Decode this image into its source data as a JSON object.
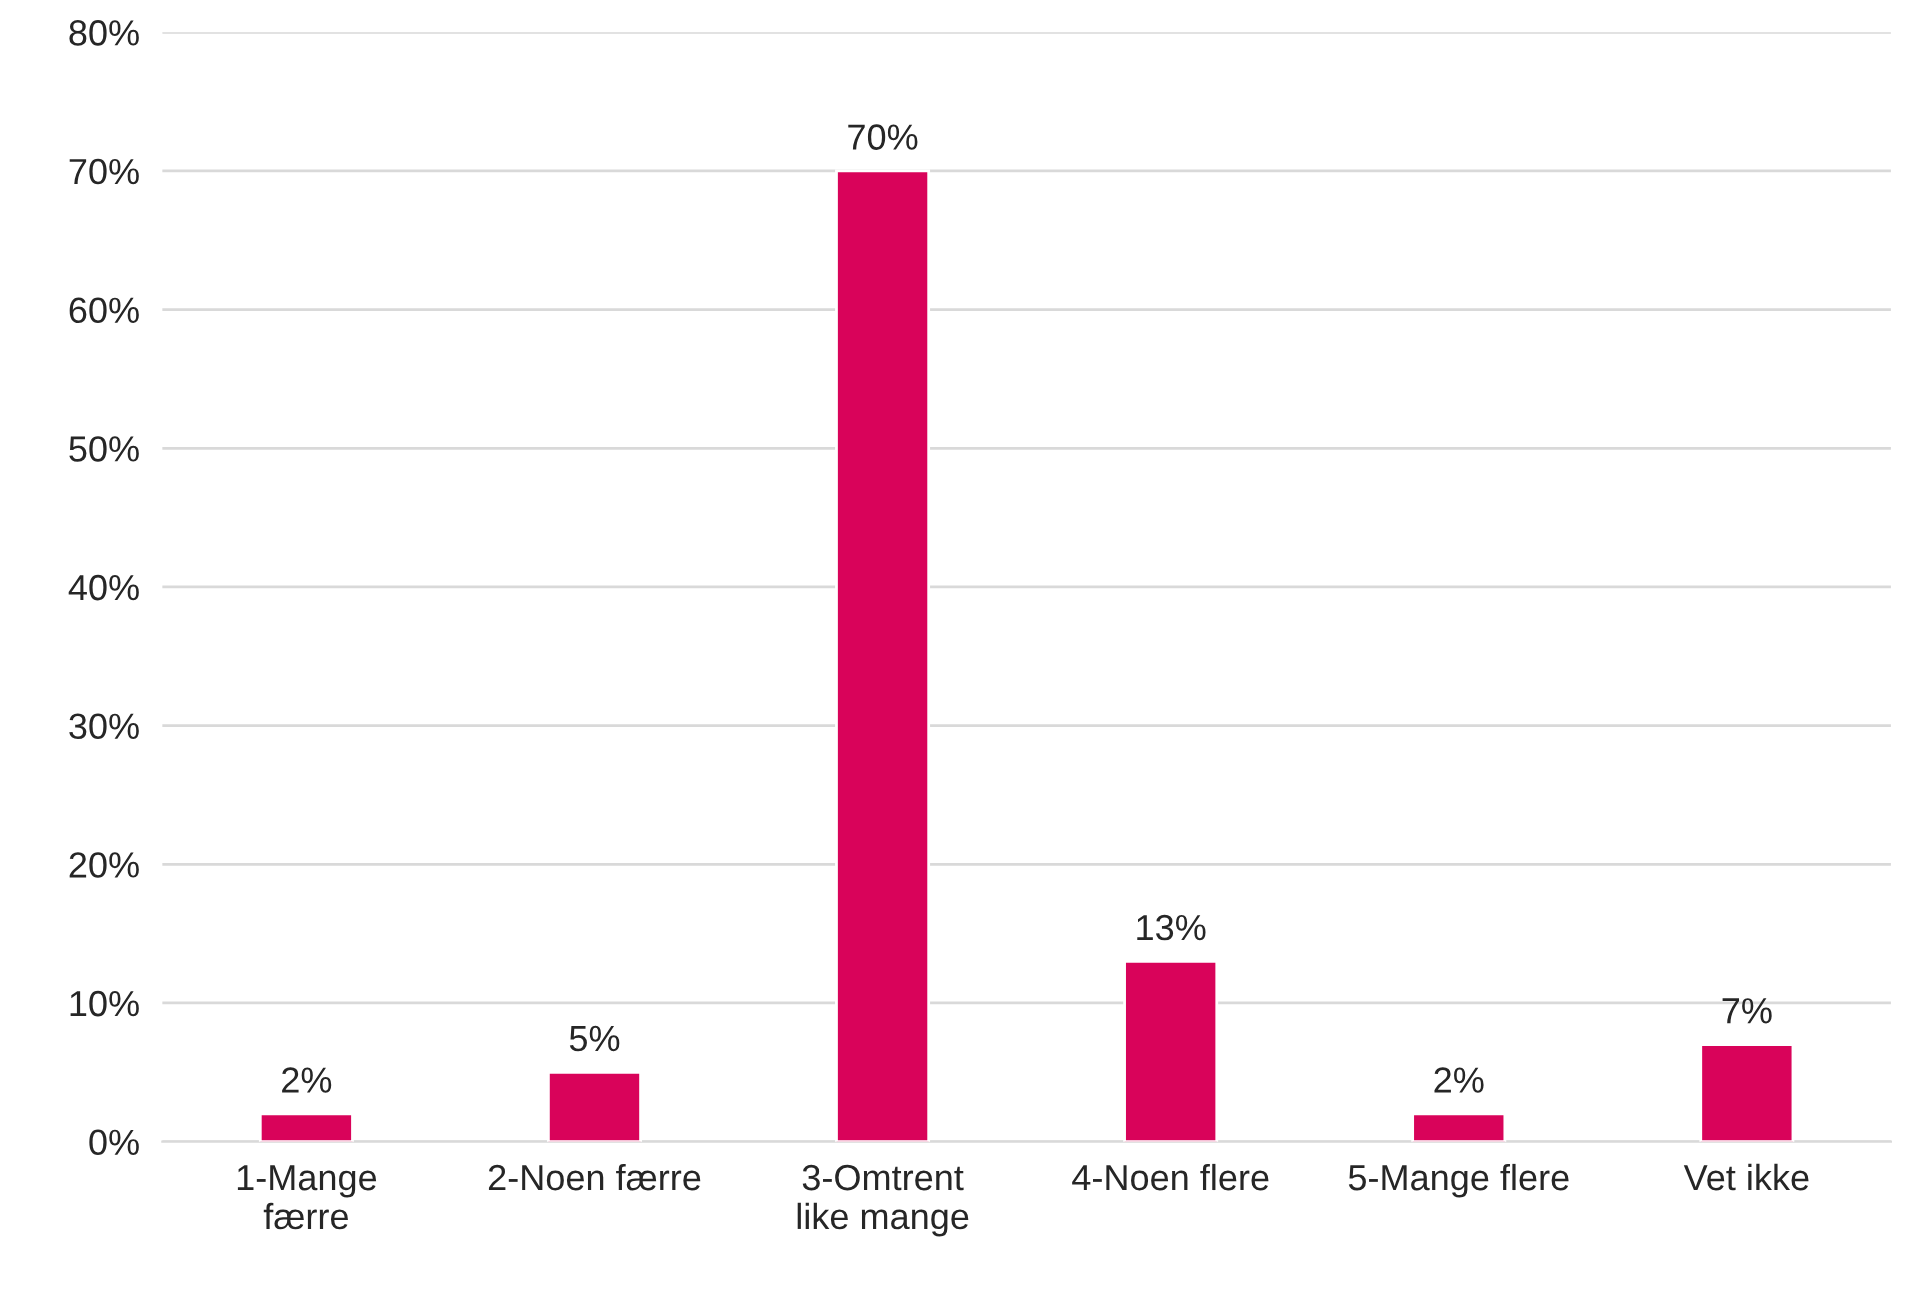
{
  "chart_data": {
    "type": "bar",
    "categories": [
      "1-Mange\nfærre",
      "2-Noen færre",
      "3-Omtrent\nlike mange",
      "4-Noen flere",
      "5-Mange flere",
      "Vet ikke"
    ],
    "values": [
      2,
      5,
      70,
      13,
      2,
      7
    ],
    "value_labels": [
      "2%",
      "5%",
      "70%",
      "13%",
      "2%",
      "7%"
    ],
    "color": "#d9035a",
    "ylim": [
      0,
      80
    ],
    "yticks": [
      {
        "value": 0,
        "label": "0%"
      },
      {
        "value": 10,
        "label": "10%"
      },
      {
        "value": 20,
        "label": "20%"
      },
      {
        "value": 30,
        "label": "30%"
      },
      {
        "value": 40,
        "label": "40%"
      },
      {
        "value": 50,
        "label": "50%"
      },
      {
        "value": 60,
        "label": "60%"
      },
      {
        "value": 70,
        "label": "70%"
      },
      {
        "value": 80,
        "label": "80%"
      }
    ],
    "grid": "y"
  }
}
